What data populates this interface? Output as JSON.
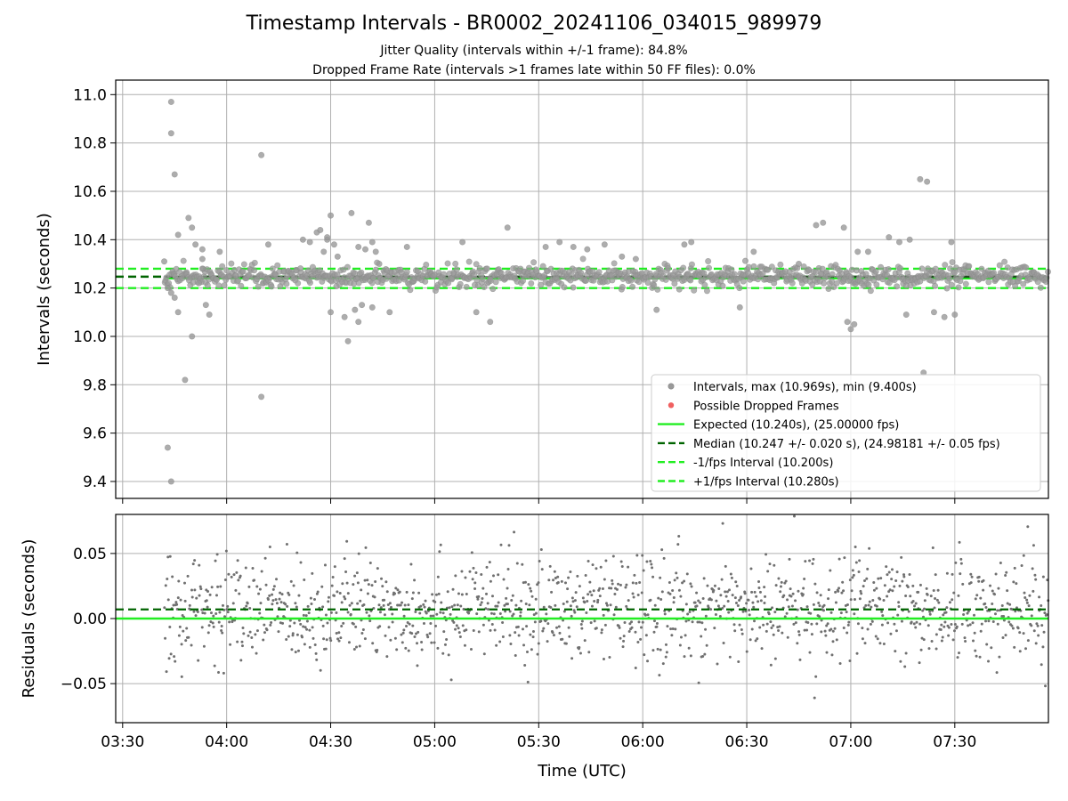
{
  "title": "Timestamp Intervals - BR0002_20241106_034015_989979",
  "subtitle_jitter": "Jitter Quality (intervals within +/-1 frame): 84.8%",
  "subtitle_dropped": "Dropped Frame Rate (intervals >1 frames late within 50 FF files): 0.0%",
  "colors": {
    "intervals": "#999999",
    "dropped": "#f06060",
    "expected": "#22ee22",
    "median": "#006400",
    "bounds": "#22ee22",
    "residuals": "#707070",
    "grid": "#b0b0b0"
  },
  "chart_data": [
    {
      "type": "scatter",
      "name": "intervals-panel",
      "ylabel": "Intervals (seconds)",
      "ylim": [
        9.33,
        11.06
      ],
      "xlim": [
        "03:28",
        "07:57"
      ],
      "yticks": [
        "9.4",
        "9.6",
        "9.8",
        "10.0",
        "10.2",
        "10.4",
        "10.6",
        "10.8",
        "11.0"
      ],
      "grid": true,
      "legend_position": "lower-right",
      "expected": 10.24,
      "median": 10.247,
      "lower_bound": 10.2,
      "upper_bound": 10.28,
      "series": [
        {
          "name": "Intervals, max (10.969s), min (9.400s)",
          "x": [
            "03:42",
            "03:44",
            "03:44",
            "03:45",
            "03:43",
            "03:44",
            "03:46",
            "03:49",
            "03:50",
            "03:51",
            "03:53",
            "03:53",
            "03:46",
            "03:50",
            "03:48",
            "03:43",
            "03:44",
            "03:45",
            "03:53",
            "03:54",
            "03:55",
            "03:52",
            "03:58",
            "04:10",
            "04:10",
            "04:12",
            "04:22",
            "04:24",
            "04:26",
            "04:27",
            "04:28",
            "04:29",
            "04:29",
            "04:30",
            "04:31",
            "04:32",
            "04:36",
            "04:38",
            "04:40",
            "04:41",
            "04:42",
            "04:43",
            "04:44",
            "04:30",
            "04:34",
            "04:35",
            "04:38",
            "04:37",
            "04:39",
            "04:42",
            "04:47",
            "04:52",
            "05:08",
            "05:12",
            "05:16",
            "05:21",
            "05:32",
            "05:36",
            "05:40",
            "05:44",
            "05:49",
            "05:54",
            "05:58",
            "06:04",
            "06:12",
            "06:14",
            "06:28",
            "06:32",
            "06:45",
            "06:50",
            "06:52",
            "06:58",
            "07:00",
            "07:02",
            "07:05",
            "07:11",
            "07:14",
            "07:17",
            "07:20",
            "07:22",
            "07:24",
            "07:27",
            "07:30",
            "07:29",
            "06:59",
            "07:01",
            "07:16",
            "07:21"
          ],
          "y": [
            10.31,
            10.97,
            10.84,
            10.67,
            9.54,
            9.4,
            10.42,
            10.49,
            10.45,
            10.38,
            10.36,
            10.32,
            10.1,
            10.0,
            9.82,
            10.2,
            10.18,
            10.16,
            10.28,
            10.13,
            10.09,
            10.22,
            10.35,
            10.75,
            9.75,
            10.38,
            10.4,
            10.39,
            10.43,
            10.44,
            10.35,
            10.4,
            10.41,
            10.5,
            10.38,
            10.33,
            10.51,
            10.37,
            10.36,
            10.47,
            10.39,
            10.35,
            10.3,
            10.1,
            10.08,
            9.98,
            10.06,
            10.11,
            10.13,
            10.12,
            10.1,
            10.37,
            10.39,
            10.1,
            10.06,
            10.45,
            10.37,
            10.39,
            10.37,
            10.36,
            10.38,
            10.33,
            10.32,
            10.11,
            10.38,
            10.39,
            10.12,
            10.35,
            10.3,
            10.46,
            10.47,
            10.45,
            10.03,
            10.35,
            10.35,
            10.41,
            10.39,
            10.4,
            10.65,
            10.64,
            10.1,
            10.08,
            10.09,
            10.39,
            10.06,
            10.05,
            10.09,
            9.85
          ]
        },
        {
          "name": "Possible Dropped Frames",
          "x": [],
          "y": []
        },
        {
          "name": "Expected (10.240s), (25.00000 fps)"
        },
        {
          "name": "Median (10.247 +/- 0.020 s), (24.98181 +/- 0.05 fps)"
        },
        {
          "name": "-1/fps Interval (10.200s)"
        },
        {
          "name": "+1/fps Interval (10.280s)"
        }
      ]
    },
    {
      "type": "scatter",
      "name": "residuals-panel",
      "xlabel": "Time (UTC)",
      "ylabel": "Residuals (seconds)",
      "ylim": [
        -0.08,
        0.08
      ],
      "xlim": [
        "03:28",
        "07:57"
      ],
      "yticks": [
        "−0.05",
        "0.00",
        "0.05"
      ],
      "xticks": [
        "03:30",
        "04:00",
        "04:30",
        "05:00",
        "05:30",
        "06:00",
        "06:30",
        "07:00",
        "07:30"
      ],
      "grid": true,
      "expected": 0.0,
      "median": 0.007,
      "series": [
        {
          "name": "residuals",
          "x_start": "03:42",
          "x_end": "07:57",
          "count": 1360,
          "median": 0.007,
          "std": 0.02,
          "min": -0.08,
          "max": 0.08
        }
      ]
    }
  ]
}
